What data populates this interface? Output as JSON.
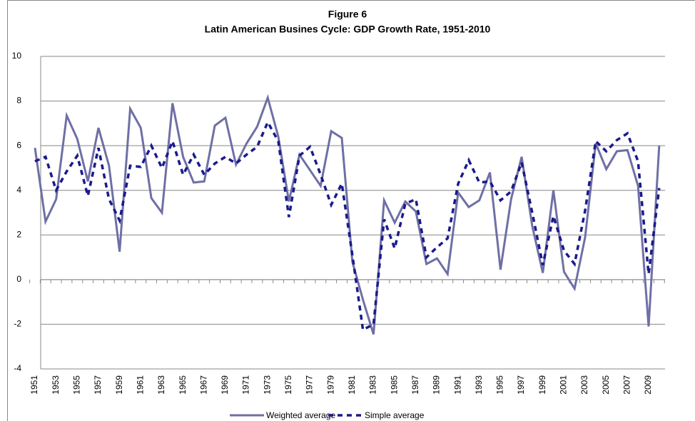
{
  "chart_data": {
    "type": "line",
    "title": "Figure 6",
    "subtitle": "Latin American Busines Cycle: GDP Growth Rate, 1951-2010",
    "categories": [
      "1951",
      null,
      "1953",
      null,
      "1955",
      null,
      "1957",
      null,
      "1959",
      null,
      "1961",
      null,
      "1963",
      null,
      "1965",
      null,
      "1967",
      null,
      "1969",
      null,
      "1971",
      null,
      "1973",
      null,
      "1975",
      null,
      "1977",
      null,
      "1979",
      null,
      "1981",
      null,
      "1983",
      null,
      "1985",
      null,
      "1987",
      null,
      "1989",
      null,
      "1991",
      null,
      "1993",
      null,
      "1995",
      null,
      "1997",
      null,
      "1999",
      null,
      "2001",
      null,
      "2003",
      null,
      "2005",
      null,
      "2007",
      null,
      "2009",
      null
    ],
    "series": [
      {
        "name": "Weighted average",
        "color": "#6f6fa6",
        "dash": false,
        "values": [
          5.9,
          2.6,
          3.6,
          7.35,
          6.3,
          4.4,
          6.8,
          5.1,
          1.25,
          7.65,
          6.8,
          3.65,
          3.0,
          7.9,
          5.5,
          4.35,
          4.4,
          6.9,
          7.25,
          5.15,
          6.1,
          6.85,
          8.15,
          6.4,
          3.5,
          5.6,
          4.9,
          4.2,
          6.65,
          6.35,
          0.8,
          -0.9,
          -2.45,
          3.55,
          2.55,
          3.5,
          3.05,
          0.7,
          0.95,
          0.25,
          3.9,
          3.25,
          3.55,
          4.8,
          0.45,
          3.6,
          5.5,
          2.4,
          0.3,
          4.0,
          0.35,
          -0.4,
          1.9,
          6.1,
          4.95,
          5.75,
          5.8,
          4.2,
          -2.1,
          6.0
        ]
      },
      {
        "name": "Simple average",
        "color": "#1a1a8c",
        "dash": true,
        "values": [
          5.3,
          5.5,
          4.0,
          4.85,
          5.55,
          3.75,
          5.9,
          3.6,
          2.65,
          5.1,
          5.05,
          6.0,
          5.0,
          6.2,
          4.7,
          5.6,
          4.7,
          5.2,
          5.5,
          5.2,
          5.6,
          5.95,
          7.05,
          6.2,
          2.8,
          5.55,
          5.95,
          4.7,
          3.35,
          4.3,
          1.1,
          -2.25,
          -2.0,
          2.7,
          1.4,
          3.4,
          3.6,
          1.0,
          1.45,
          1.85,
          4.3,
          5.35,
          4.35,
          4.4,
          3.55,
          3.95,
          5.25,
          3.0,
          0.65,
          2.85,
          1.3,
          0.7,
          3.1,
          6.2,
          5.75,
          6.25,
          6.55,
          5.3,
          0.25,
          4.1
        ]
      }
    ],
    "ylim": [
      -4,
      10
    ],
    "yticks": [
      -4,
      -2,
      0,
      2,
      4,
      6,
      8,
      10
    ],
    "grid": true,
    "legend": "bottom"
  }
}
